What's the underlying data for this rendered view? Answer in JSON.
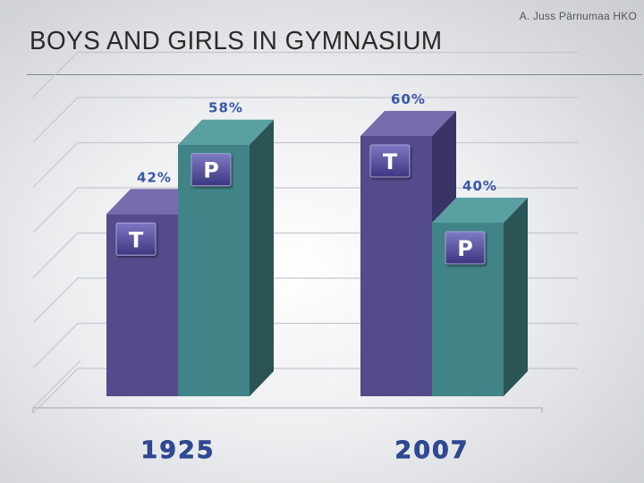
{
  "credit": "A. Juss Pärnumaa HKO",
  "title": "BOYS AND GIRLS IN GYMNASIUM",
  "chart_data": {
    "type": "bar",
    "title": "BOYS AND GIRLS IN GYMNASIUM",
    "categories": [
      "1925",
      "2007"
    ],
    "series": [
      {
        "name": "T",
        "values": [
          42,
          60
        ]
      },
      {
        "name": "P",
        "values": [
          58,
          40
        ]
      }
    ],
    "value_labels": [
      [
        "42%",
        "58%"
      ],
      [
        "60%",
        "40%"
      ]
    ],
    "ylim": [
      0,
      70
    ],
    "grid": true,
    "three_d": true,
    "colors": {
      "T_front": "#544b8c",
      "T_side": "#3a3365",
      "T_top": "#756dad",
      "P_front": "#408487",
      "P_side": "#2a5456",
      "P_top": "#5a9fa2",
      "year_label": "#2f4a9a",
      "value_label": "#3a56a8"
    }
  }
}
